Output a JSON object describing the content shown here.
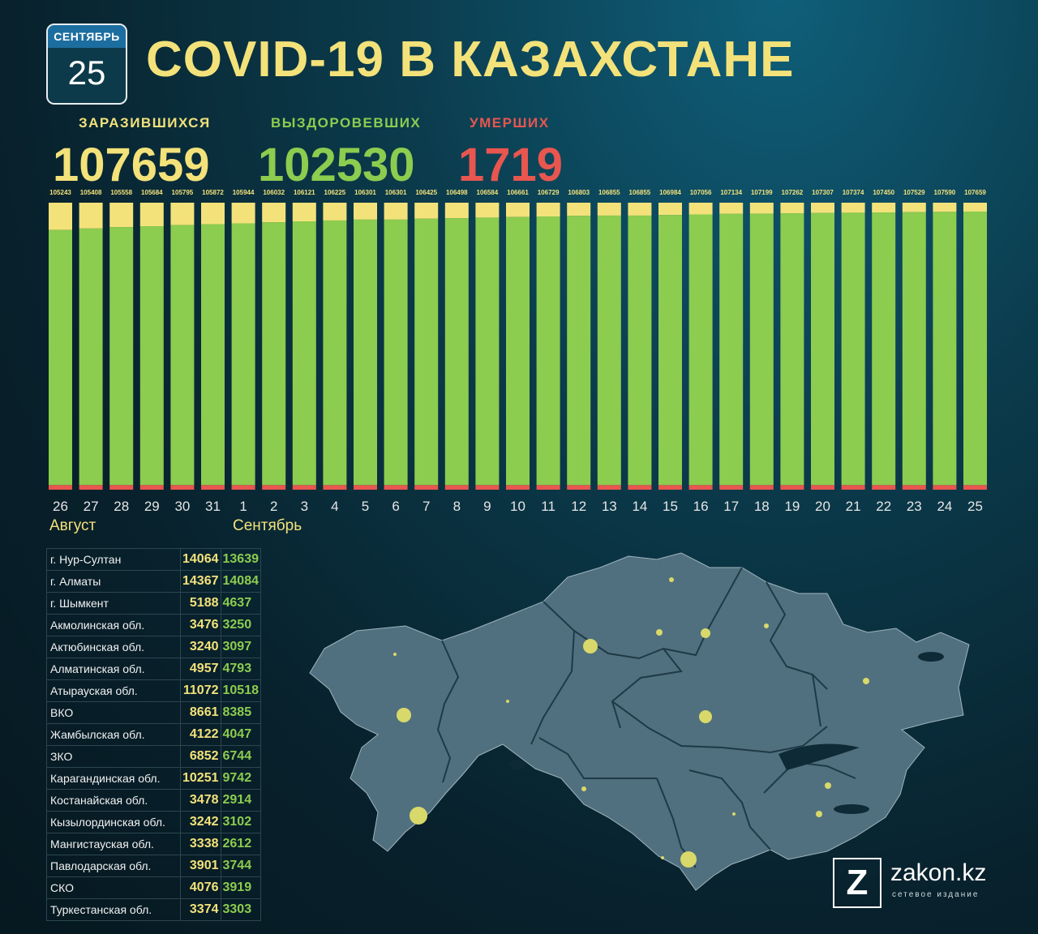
{
  "calendar": {
    "month": "СЕНТЯБРЬ",
    "day": "25"
  },
  "title": "COVID-19 В КАЗАХСТАНЕ",
  "stats": {
    "infected": {
      "label": "ЗАРАЗИВШИХСЯ",
      "value": "107659"
    },
    "recovered": {
      "label": "ВЫЗДОРОВЕВШИХ",
      "value": "102530"
    },
    "dead": {
      "label": "УМЕРШИХ",
      "value": "1719"
    }
  },
  "colors": {
    "infected": "#f3e27a",
    "recovered": "#8ccc4f",
    "dead": "#e8564f"
  },
  "chart_data": {
    "type": "bar",
    "stacked": true,
    "categories": [
      "26",
      "27",
      "28",
      "29",
      "30",
      "31",
      "1",
      "2",
      "3",
      "4",
      "5",
      "6",
      "7",
      "8",
      "9",
      "10",
      "11",
      "12",
      "13",
      "14",
      "15",
      "16",
      "17",
      "18",
      "19",
      "20",
      "21",
      "22",
      "23",
      "24",
      "25"
    ],
    "month_labels": {
      "start": "Август",
      "september": "Сентябрь"
    },
    "totals": [
      105243,
      105408,
      105558,
      105684,
      105795,
      105872,
      105944,
      106032,
      106121,
      106225,
      106301,
      106301,
      106425,
      106498,
      106584,
      106661,
      106729,
      106803,
      106855,
      106855,
      106984,
      107056,
      107134,
      107199,
      107262,
      107307,
      107374,
      107450,
      107529,
      107590,
      107659
    ],
    "recovered_fraction": [
      0.905,
      0.91,
      0.915,
      0.918,
      0.922,
      0.925,
      0.928,
      0.932,
      0.935,
      0.938,
      0.941,
      0.941,
      0.944,
      0.946,
      0.948,
      0.95,
      0.952,
      0.954,
      0.955,
      0.955,
      0.957,
      0.959,
      0.961,
      0.962,
      0.963,
      0.964,
      0.965,
      0.966,
      0.967,
      0.968,
      0.969
    ],
    "dead_fraction": 0.016,
    "series": [
      {
        "key": "dead"
      },
      {
        "key": "recovered"
      },
      {
        "key": "infected"
      }
    ],
    "legend": "none",
    "grid": false
  },
  "regions": [
    {
      "name": "г. Нур-Султан",
      "infected": "14064",
      "recovered": "13639"
    },
    {
      "name": "г. Алматы",
      "infected": "14367",
      "recovered": "14084"
    },
    {
      "name": "г. Шымкент",
      "infected": "5188",
      "recovered": "4637"
    },
    {
      "name": "Акмолинская обл.",
      "infected": "3476",
      "recovered": "3250"
    },
    {
      "name": "Актюбинская обл.",
      "infected": "3240",
      "recovered": "3097"
    },
    {
      "name": "Алматинская обл.",
      "infected": "4957",
      "recovered": "4793"
    },
    {
      "name": "Атырауская обл.",
      "infected": "11072",
      "recovered": "10518"
    },
    {
      "name": "ВКО",
      "infected": "8661",
      "recovered": "8385"
    },
    {
      "name": "Жамбылская обл.",
      "infected": "4122",
      "recovered": "4047"
    },
    {
      "name": "ЗКО",
      "infected": "6852",
      "recovered": "6744"
    },
    {
      "name": "Карагандинская обл.",
      "infected": "10251",
      "recovered": "9742"
    },
    {
      "name": "Костанайская обл.",
      "infected": "3478",
      "recovered": "2914"
    },
    {
      "name": "Кызылординская обл.",
      "infected": "3242",
      "recovered": "3102"
    },
    {
      "name": "Мангистауская обл.",
      "infected": "3338",
      "recovered": "2612"
    },
    {
      "name": "Павлодарская обл.",
      "infected": "3901",
      "recovered": "3744"
    },
    {
      "name": "СКО",
      "infected": "4076",
      "recovered": "3919"
    },
    {
      "name": "Туркестанская обл.",
      "infected": "3374",
      "recovered": "3303"
    }
  ],
  "logo": {
    "mark": "Z",
    "name": "zakon.kz",
    "subtitle": "сетевое издание"
  }
}
